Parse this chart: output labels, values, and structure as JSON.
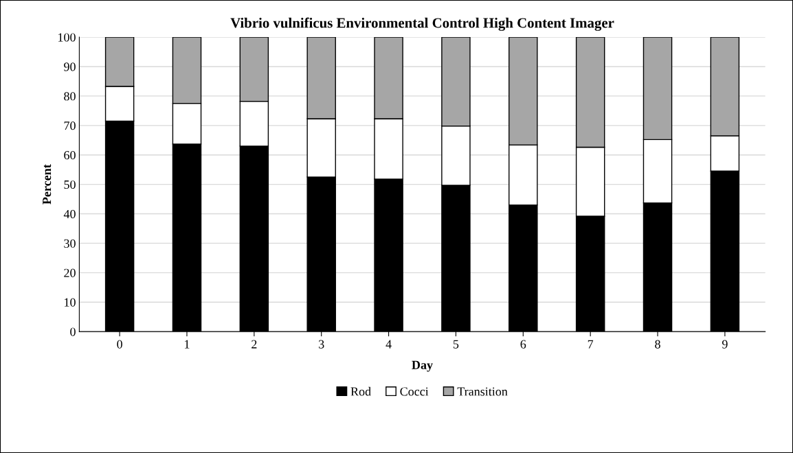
{
  "chart_data": {
    "type": "bar",
    "stacked": true,
    "title": "Vibrio vulnificus Environmental Control High Content Imager",
    "xlabel": "Day",
    "ylabel": "Percent",
    "categories": [
      "0",
      "1",
      "2",
      "3",
      "4",
      "5",
      "6",
      "7",
      "8",
      "9"
    ],
    "series": [
      {
        "name": "Rod",
        "color": "#000000",
        "values": [
          71.5,
          63.7,
          63.0,
          52.5,
          51.8,
          49.7,
          43.0,
          39.2,
          43.7,
          54.5
        ]
      },
      {
        "name": "Cocci",
        "color": "#ffffff",
        "values": [
          11.8,
          13.8,
          15.2,
          19.8,
          20.5,
          20.1,
          20.4,
          23.4,
          21.5,
          12.0
        ]
      },
      {
        "name": "Transition",
        "color": "#a6a6a6",
        "values": [
          16.7,
          22.5,
          21.8,
          27.7,
          27.7,
          30.2,
          36.6,
          37.4,
          34.8,
          33.5
        ]
      }
    ],
    "ylim": [
      0,
      100
    ],
    "yticks": [
      0,
      10,
      20,
      30,
      40,
      50,
      60,
      70,
      80,
      90,
      100
    ],
    "grid": "y",
    "legend": "bottom"
  }
}
